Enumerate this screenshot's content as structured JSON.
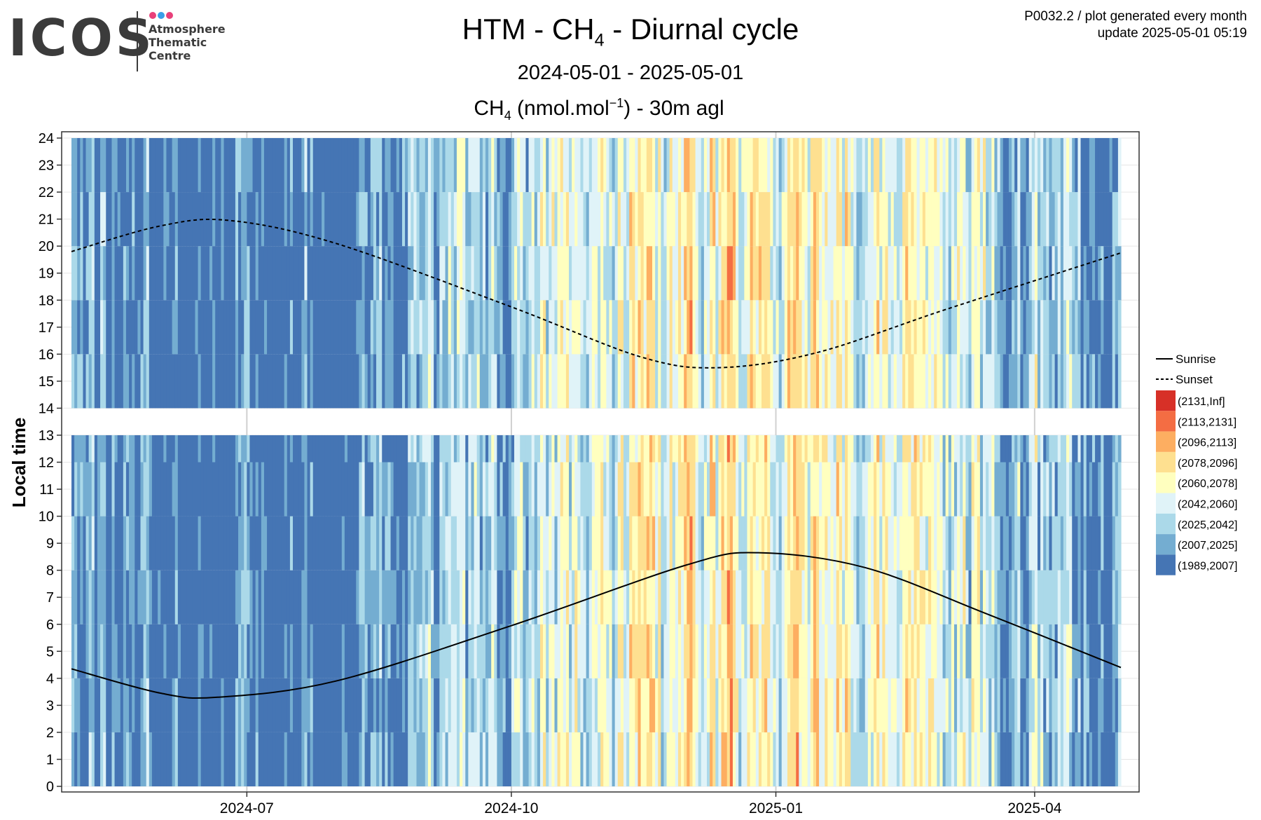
{
  "header": {
    "logo": {
      "word": "ICOS",
      "lines": [
        "Atmosphere",
        "Thematic",
        "Centre"
      ],
      "dot_colors": [
        "#e8407a",
        "#3a9ee8",
        "#e8407a"
      ]
    },
    "title": {
      "prefix": "HTM - CH",
      "sub": "4",
      "suffix": " - Diurnal cycle"
    },
    "subtitle": "2024-05-01 - 2025-05-01",
    "gas_label": {
      "prefix": "CH",
      "sub": "4",
      "unit": " (nmol.mol",
      "sup": "−1",
      "suffix": ") - 30m agl"
    },
    "product_line": "P0032.2 / plot generated every month",
    "update_line": "update  2025-05-01 05:19"
  },
  "chart_data": {
    "type": "heatmap",
    "xlabel": "",
    "ylabel": "Local time",
    "x_range": [
      "2024-05-01",
      "2025-05-01"
    ],
    "x_ticks": [
      "2024-07",
      "2024-10",
      "2025-01",
      "2025-04"
    ],
    "y_ticks": [
      0,
      1,
      2,
      3,
      4,
      5,
      6,
      7,
      8,
      9,
      10,
      11,
      12,
      13,
      14,
      15,
      16,
      17,
      18,
      19,
      20,
      21,
      22,
      23,
      24
    ],
    "y_gap_hours": [
      13,
      14
    ],
    "bins": [
      {
        "label": "(2131,Inf]",
        "color": "#d73027"
      },
      {
        "label": "(2113,2131]",
        "color": "#f46d43"
      },
      {
        "label": "(2096,2113]",
        "color": "#fdae61"
      },
      {
        "label": "(2078,2096]",
        "color": "#fee090"
      },
      {
        "label": "(2060,2078]",
        "color": "#ffffbf"
      },
      {
        "label": "(2042,2060]",
        "color": "#e0f3f8"
      },
      {
        "label": "(2025,2042]",
        "color": "#abd9e9"
      },
      {
        "label": "(2007,2025]",
        "color": "#74add1"
      },
      {
        "label": "(1989,2007]",
        "color": "#4575b4"
      }
    ],
    "legend_position": "right",
    "lines": [
      {
        "name": "Sunrise",
        "style": "solid",
        "dates": [
          "2024-05-01",
          "2024-06-01",
          "2024-06-21",
          "2024-08-01",
          "2024-10-01",
          "2024-12-01",
          "2024-12-26",
          "2025-02-01",
          "2025-03-15",
          "2025-05-01"
        ],
        "hours": [
          4.35,
          3.45,
          3.3,
          3.9,
          5.95,
          8.2,
          8.65,
          8.1,
          6.4,
          4.4
        ]
      },
      {
        "name": "Sunset",
        "style": "dashed",
        "dates": [
          "2024-05-01",
          "2024-06-01",
          "2024-06-25",
          "2024-08-01",
          "2024-10-01",
          "2024-11-15",
          "2024-12-12",
          "2025-01-15",
          "2025-03-01",
          "2025-05-01"
        ],
        "hours": [
          19.8,
          20.75,
          20.95,
          20.1,
          17.75,
          15.9,
          15.5,
          16.05,
          17.65,
          19.75
        ]
      }
    ],
    "grid": "on"
  }
}
